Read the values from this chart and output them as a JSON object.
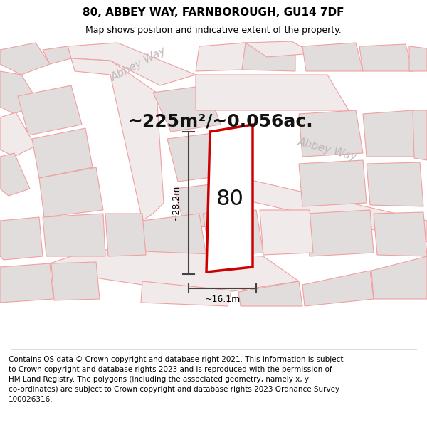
{
  "title": "80, ABBEY WAY, FARNBOROUGH, GU14 7DF",
  "subtitle": "Map shows position and indicative extent of the property.",
  "area_label": "~225m²/~0.056ac.",
  "dim_vertical": "~28.2m",
  "dim_horizontal": "~16.1m",
  "number_label": "80",
  "street_label_1": "Abbey Way",
  "street_label_2": "Abbey Way",
  "footer_lines": [
    "Contains OS data © Crown copyright and database right 2021. This information is subject",
    "to Crown copyright and database rights 2023 and is reproduced with the permission of",
    "HM Land Registry. The polygons (including the associated geometry, namely x, y",
    "co-ordinates) are subject to Crown copyright and database rights 2023 Ordnance Survey",
    "100026316."
  ],
  "map_bg": "#faf8f8",
  "poly_stroke": "#f0a0a0",
  "poly_fill_light": "#f0eaea",
  "poly_fill_gray": "#e2dddd",
  "highlight_stroke": "#cc0000",
  "highlight_fill": "#ffffff",
  "dim_color": "#444444",
  "road_label_color": "#c0b8b8",
  "title_fontsize": 11,
  "subtitle_fontsize": 9,
  "area_fontsize": 18,
  "number_fontsize": 22,
  "dim_fontsize": 9,
  "street_fontsize": 11,
  "footer_fontsize": 7.5
}
